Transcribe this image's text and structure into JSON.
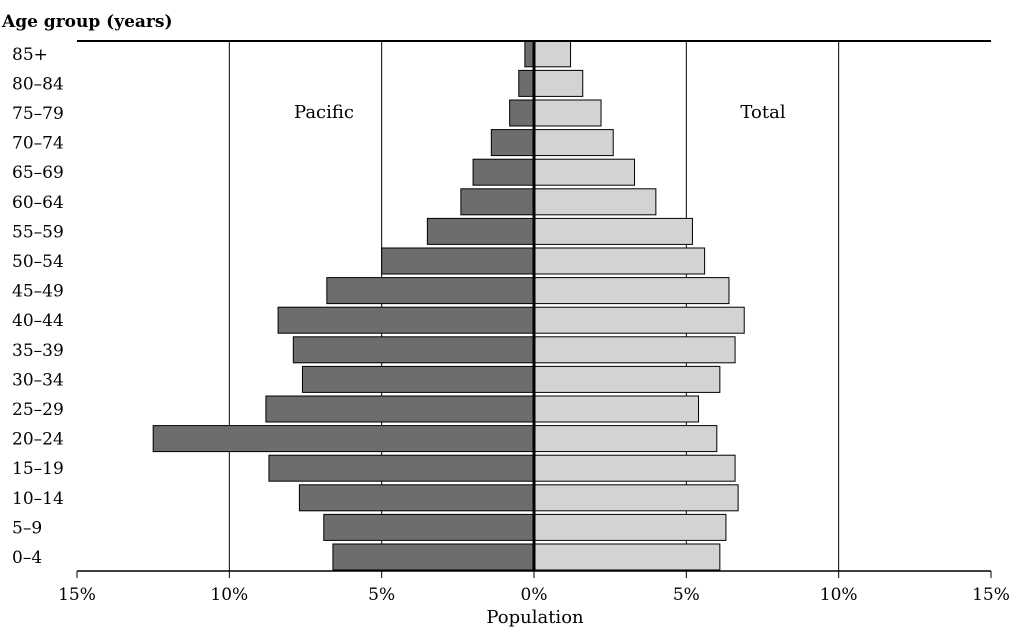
{
  "chart_data": {
    "type": "bar",
    "orientation": "horizontal",
    "layout": "population-pyramid",
    "title": "Age group (years)",
    "xlabel": "Population",
    "xlim": [
      -15,
      15
    ],
    "x_ticks": [
      {
        "value": -15,
        "label": "15%"
      },
      {
        "value": -10,
        "label": "10%"
      },
      {
        "value": -5,
        "label": "5%"
      },
      {
        "value": 0,
        "label": "0%"
      },
      {
        "value": 5,
        "label": "5%"
      },
      {
        "value": 10,
        "label": "10%"
      },
      {
        "value": 15,
        "label": "15%"
      }
    ],
    "categories": [
      "85+",
      "80–84",
      "75–79",
      "70–74",
      "65–69",
      "60–64",
      "55–59",
      "50–54",
      "45–49",
      "40–44",
      "35–39",
      "30–34",
      "25–29",
      "20–24",
      "15–19",
      "10–14",
      "5–9",
      "0–4"
    ],
    "series": [
      {
        "name": "Pacific",
        "side": "left",
        "color": "#6d6d6d",
        "values": [
          0.3,
          0.5,
          0.8,
          1.4,
          2.0,
          2.4,
          3.5,
          5.0,
          6.8,
          8.4,
          7.9,
          7.6,
          8.8,
          12.5,
          8.7,
          7.7,
          6.9,
          6.6
        ]
      },
      {
        "name": "Total",
        "side": "right",
        "color": "#d3d3d3",
        "values": [
          1.2,
          1.6,
          2.2,
          2.6,
          3.3,
          4.0,
          5.2,
          5.6,
          6.4,
          6.9,
          6.6,
          6.1,
          5.4,
          6.0,
          6.6,
          6.7,
          6.3,
          6.1
        ]
      }
    ],
    "grid": true
  }
}
